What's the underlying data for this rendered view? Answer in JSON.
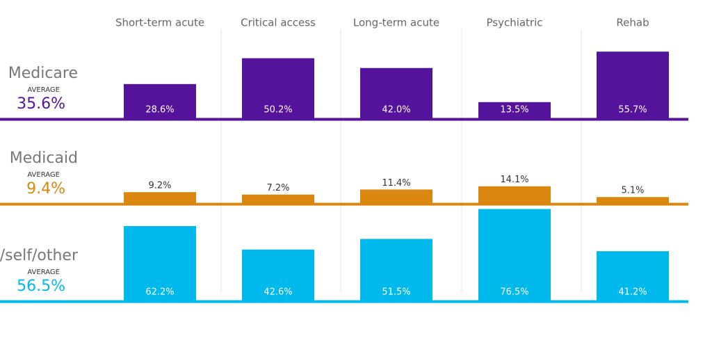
{
  "chart_data": {
    "type": "bar",
    "categories": [
      "Short-term acute",
      "Critical access",
      "Long-term acute",
      "Psychiatric",
      "Rehab"
    ],
    "average_caption": "AVERAGE",
    "series": [
      {
        "name": "Medicare",
        "color": "#55129a",
        "average": "35.6%",
        "values": [
          28.6,
          50.2,
          42.0,
          13.5,
          55.7
        ],
        "value_labels": [
          "28.6%",
          "50.2%",
          "42.0%",
          "13.5%",
          "55.7%"
        ]
      },
      {
        "name": "Medicaid",
        "color": "#d9870f",
        "average": "9.4%",
        "values": [
          9.2,
          7.2,
          11.4,
          14.1,
          5.1
        ],
        "value_labels": [
          "9.2%",
          "7.2%",
          "11.4%",
          "14.1%",
          "5.1%"
        ]
      },
      {
        "name": "Private/self/other",
        "color": "#00b9ec",
        "average": "56.5%",
        "values": [
          62.2,
          42.6,
          51.5,
          76.5,
          41.2
        ],
        "value_labels": [
          "62.2%",
          "42.6%",
          "51.5%",
          "76.5%",
          "41.2%"
        ]
      }
    ]
  }
}
